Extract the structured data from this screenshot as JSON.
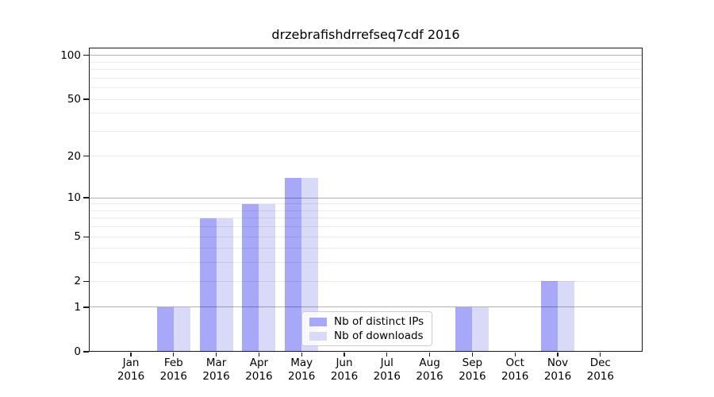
{
  "chart_data": {
    "type": "bar",
    "title": "drzebrafishdrrefseq7cdf 2016",
    "categories": [
      "Jan 2016",
      "Feb 2016",
      "Mar 2016",
      "Apr 2016",
      "May 2016",
      "Jun 2016",
      "Jul 2016",
      "Aug 2016",
      "Sep 2016",
      "Oct 2016",
      "Nov 2016",
      "Dec 2016"
    ],
    "series": [
      {
        "name": "Nb of distinct IPs",
        "color": "#a8a8f8",
        "values": [
          0,
          1,
          7,
          9,
          14,
          0,
          0,
          0,
          1,
          0,
          2,
          0
        ]
      },
      {
        "name": "Nb of downloads",
        "color": "#d9d9f8",
        "values": [
          0,
          1,
          7,
          9,
          14,
          0,
          0,
          0,
          1,
          0,
          2,
          0
        ]
      }
    ],
    "xlabel": "",
    "ylabel": "",
    "yscale": "log1p",
    "ylim": [
      0,
      113
    ],
    "ytick_values": [
      0,
      1,
      2,
      5,
      10,
      20,
      50,
      100
    ],
    "ytick_labels": [
      "0",
      "1",
      "2",
      "5",
      "10",
      "20",
      "50",
      "100"
    ],
    "major_gridlines": [
      1,
      10,
      100
    ],
    "minor_gridlines": [
      2,
      3,
      4,
      5,
      6,
      7,
      8,
      9,
      20,
      30,
      40,
      50,
      60,
      70,
      80,
      90
    ],
    "grid": true,
    "legend_position": "lower center"
  },
  "colors": {
    "background": "#ffffff",
    "spine": "#1a1a1a",
    "bar_distinct_ips": "#a8a8f8",
    "bar_downloads": "#d9d9f8",
    "major_grid": "rgba(0,0,0,0.30)",
    "minor_grid": "rgba(0,0,0,0.08)"
  }
}
